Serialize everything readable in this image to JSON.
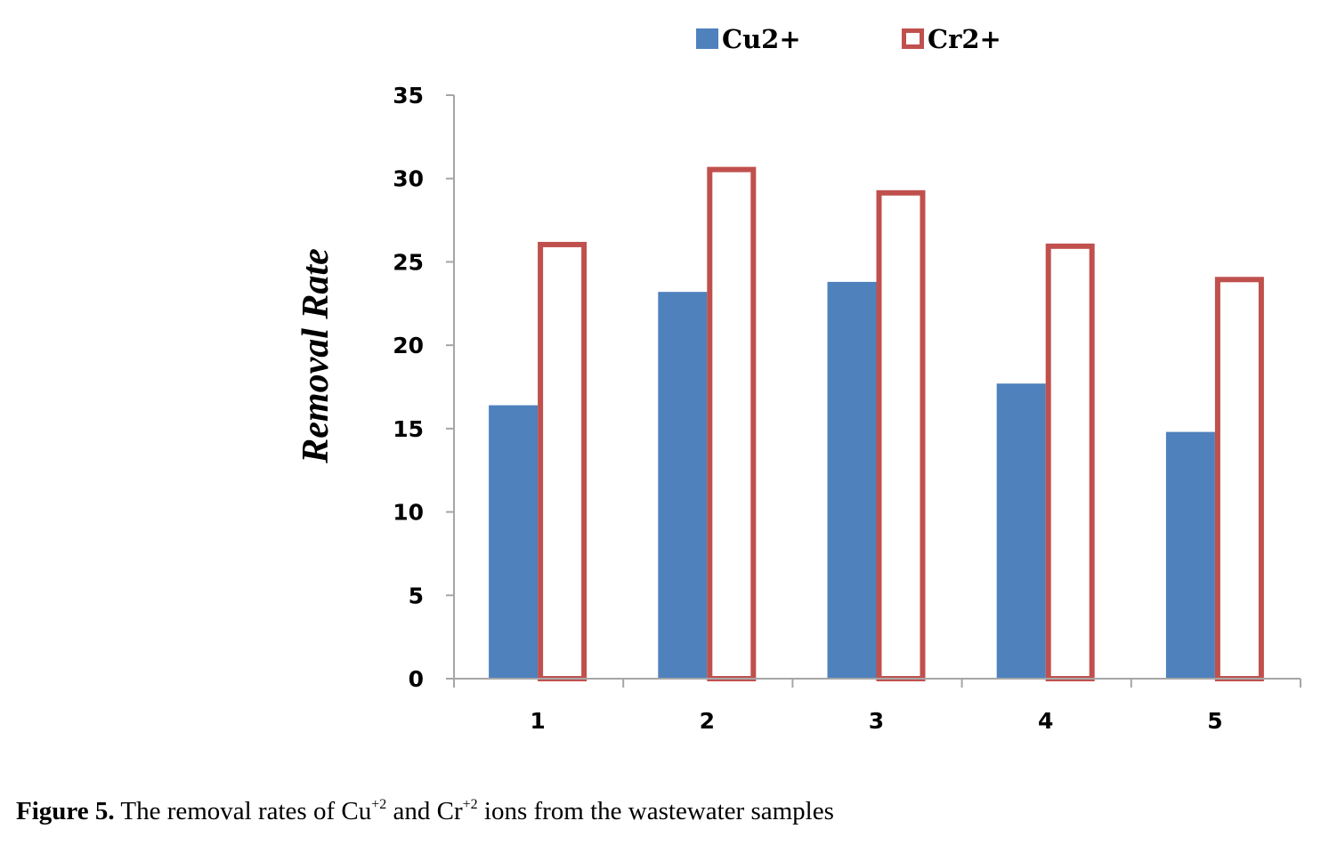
{
  "chart_data": {
    "type": "bar",
    "categories": [
      "1",
      "2",
      "3",
      "4",
      "5"
    ],
    "series": [
      {
        "name": "Cu2+",
        "values": [
          16.4,
          23.2,
          23.8,
          17.7,
          14.8
        ],
        "color": "#4f81bd",
        "style": "filled"
      },
      {
        "name": "Cr2+",
        "values": [
          26.2,
          30.7,
          29.3,
          26.1,
          24.1
        ],
        "color": "#c0504d",
        "style": "outline"
      }
    ],
    "title": "",
    "xlabel": "",
    "ylabel": "Removal Rate",
    "ylim": [
      0,
      35
    ],
    "yticks": [
      "0",
      "5",
      "10",
      "15",
      "20",
      "25",
      "30",
      "35"
    ],
    "grid": false,
    "legend_position": "top"
  },
  "caption": {
    "label": "Figure 5.",
    "text_before": "The removal rates of Cu",
    "sup1": "+2",
    "text_middle": "and Cr",
    "sup2": "+2",
    "text_after": "ions from the wastewater samples"
  }
}
